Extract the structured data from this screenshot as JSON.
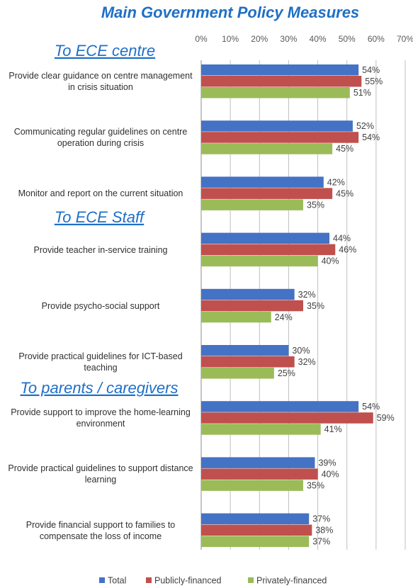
{
  "chart_data": {
    "type": "bar",
    "orientation": "horizontal",
    "title": "Main Government Policy Measures",
    "annotations": [
      "To ECE centre",
      "To ECE Staff",
      "To parents / caregivers"
    ],
    "categories": [
      "Provide clear guidance on centre management in crisis situation",
      "Communicating regular guidelines on centre operation during crisis",
      "Monitor and report on the current situation",
      "Provide teacher in-service training",
      "Provide psycho-social support",
      "Provide practical guidelines for ICT-based teaching",
      "Provide support to improve the home-learning environment",
      "Provide practical guidelines to support distance learning",
      "Provide financial support to families to compensate the loss of income"
    ],
    "series": [
      {
        "name": "Total",
        "color": "#4472c4",
        "values": [
          54,
          52,
          42,
          44,
          32,
          30,
          54,
          39,
          37
        ],
        "value_labels": [
          "54%",
          "52%",
          "42%",
          "44%",
          "32%",
          "30%",
          "54%",
          "39%",
          "37%"
        ]
      },
      {
        "name": "Publicly-financed",
        "color": "#c0504d",
        "values": [
          55,
          54,
          45,
          46,
          35,
          32,
          59,
          40,
          38
        ],
        "value_labels": [
          "55%",
          "54%",
          "45%",
          "46%",
          "35%",
          "32%",
          "59%",
          "40%",
          "38%"
        ]
      },
      {
        "name": "Privately-financed",
        "color": "#9bbb59",
        "values": [
          51,
          45,
          35,
          40,
          24,
          25,
          41,
          35,
          37
        ],
        "value_labels": [
          "51%",
          "45%",
          "35%",
          "40%",
          "24%",
          "25%",
          "41%",
          "35%",
          "37%"
        ]
      }
    ],
    "xlim": [
      0,
      70
    ],
    "xticks": [
      {
        "value": 0,
        "label": "0%"
      },
      {
        "value": 10,
        "label": "10%"
      },
      {
        "value": 20,
        "label": "20%"
      },
      {
        "value": 30,
        "label": "30%"
      },
      {
        "value": 40,
        "label": "40%"
      },
      {
        "value": 50,
        "label": "50%"
      },
      {
        "value": 60,
        "label": "60%"
      },
      {
        "value": 70,
        "label": "70%"
      }
    ],
    "grid": true,
    "legend": "bottom"
  }
}
